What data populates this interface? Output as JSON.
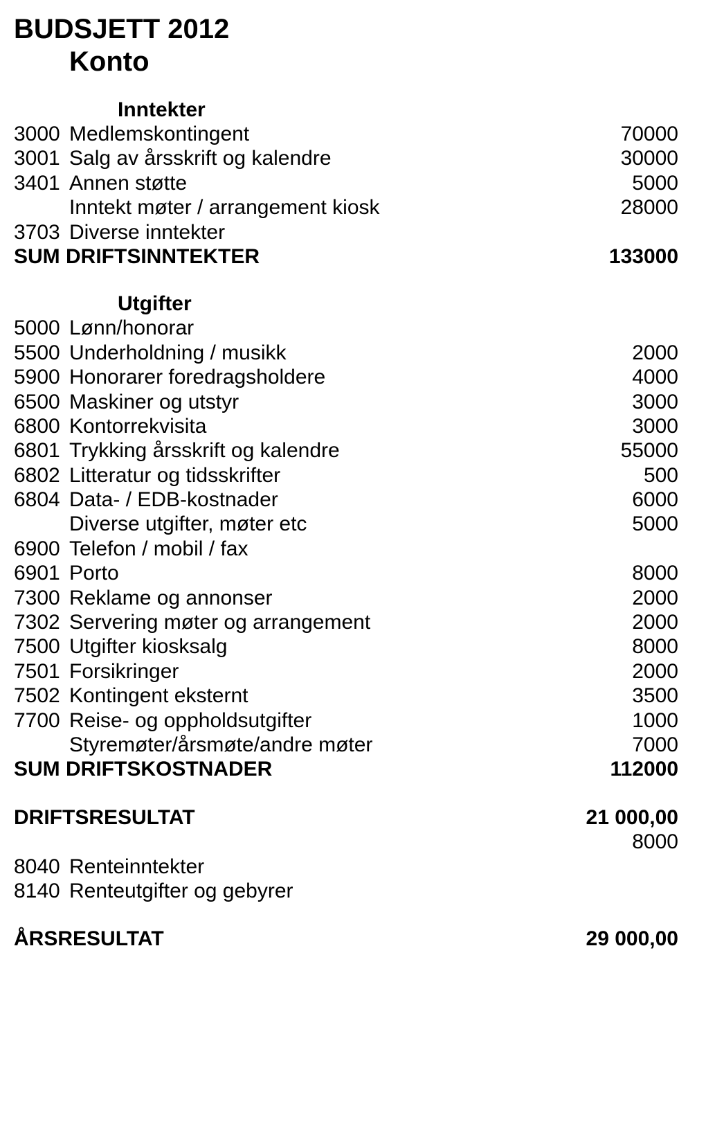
{
  "title": "BUDSJETT 2012",
  "subtitle": "Konto",
  "sections": {
    "inntekter": {
      "header": "Inntekter",
      "rows": [
        {
          "code": "3000",
          "label": "Medlemskontingent",
          "value": "70000"
        },
        {
          "code": "3001",
          "label": "Salg av årsskrift og kalendre",
          "value": "30000"
        },
        {
          "code": "3401",
          "label": "Annen støtte",
          "value": "5000"
        },
        {
          "code": "",
          "label": "Inntekt møter / arrangement kiosk",
          "value": "28000"
        },
        {
          "code": "3703",
          "label": "Diverse inntekter",
          "value": ""
        }
      ],
      "sum": {
        "label": "SUM DRIFTSINNTEKTER",
        "value": "133000"
      }
    },
    "utgifter": {
      "header": "Utgifter",
      "rows": [
        {
          "code": "5000",
          "label": "Lønn/honorar",
          "value": ""
        },
        {
          "code": "5500",
          "label": "Underholdning / musikk",
          "value": "2000"
        },
        {
          "code": "5900",
          "label": "Honorarer foredragsholdere",
          "value": "4000"
        },
        {
          "code": "6500",
          "label": "Maskiner og utstyr",
          "value": "3000"
        },
        {
          "code": "6800",
          "label": "Kontorrekvisita",
          "value": "3000"
        },
        {
          "code": "6801",
          "label": "Trykking årsskrift og kalendre",
          "value": "55000"
        },
        {
          "code": "6802",
          "label": "Litteratur og tidsskrifter",
          "value": "500"
        },
        {
          "code": "6804",
          "label": "Data- / EDB-kostnader",
          "value": "6000"
        },
        {
          "code": "",
          "label": "Diverse utgifter, møter etc",
          "value": "5000"
        },
        {
          "code": "6900",
          "label": "Telefon / mobil / fax",
          "value": ""
        },
        {
          "code": "6901",
          "label": "Porto",
          "value": "8000"
        },
        {
          "code": "7300",
          "label": "Reklame og annonser",
          "value": "2000"
        },
        {
          "code": "7302",
          "label": "Servering møter og arrangement",
          "value": "2000"
        },
        {
          "code": "7500",
          "label": "Utgifter kiosksalg",
          "value": "8000"
        },
        {
          "code": "7501",
          "label": "Forsikringer",
          "value": "2000"
        },
        {
          "code": "7502",
          "label": "Kontingent eksternt",
          "value": "3500"
        },
        {
          "code": "7700",
          "label": "Reise- og oppholdsutgifter",
          "value": "1000"
        },
        {
          "code": "",
          "label": "Styremøter/årsmøte/andre møter",
          "value": "7000"
        }
      ],
      "sum": {
        "label": "SUM DRIFTSKOSTNADER",
        "value": "112000"
      }
    },
    "driftsresultat": {
      "label": "DRIFTSRESULTAT",
      "value": "21 000,00",
      "extra": "8000"
    },
    "finans": [
      {
        "code": "8040",
        "label": "Renteinntekter",
        "value": ""
      },
      {
        "code": "8140",
        "label": "Renteutgifter og gebyrer",
        "value": ""
      }
    ],
    "arsresultat": {
      "label": "ÅRSRESULTAT",
      "value": "29 000,00"
    }
  }
}
